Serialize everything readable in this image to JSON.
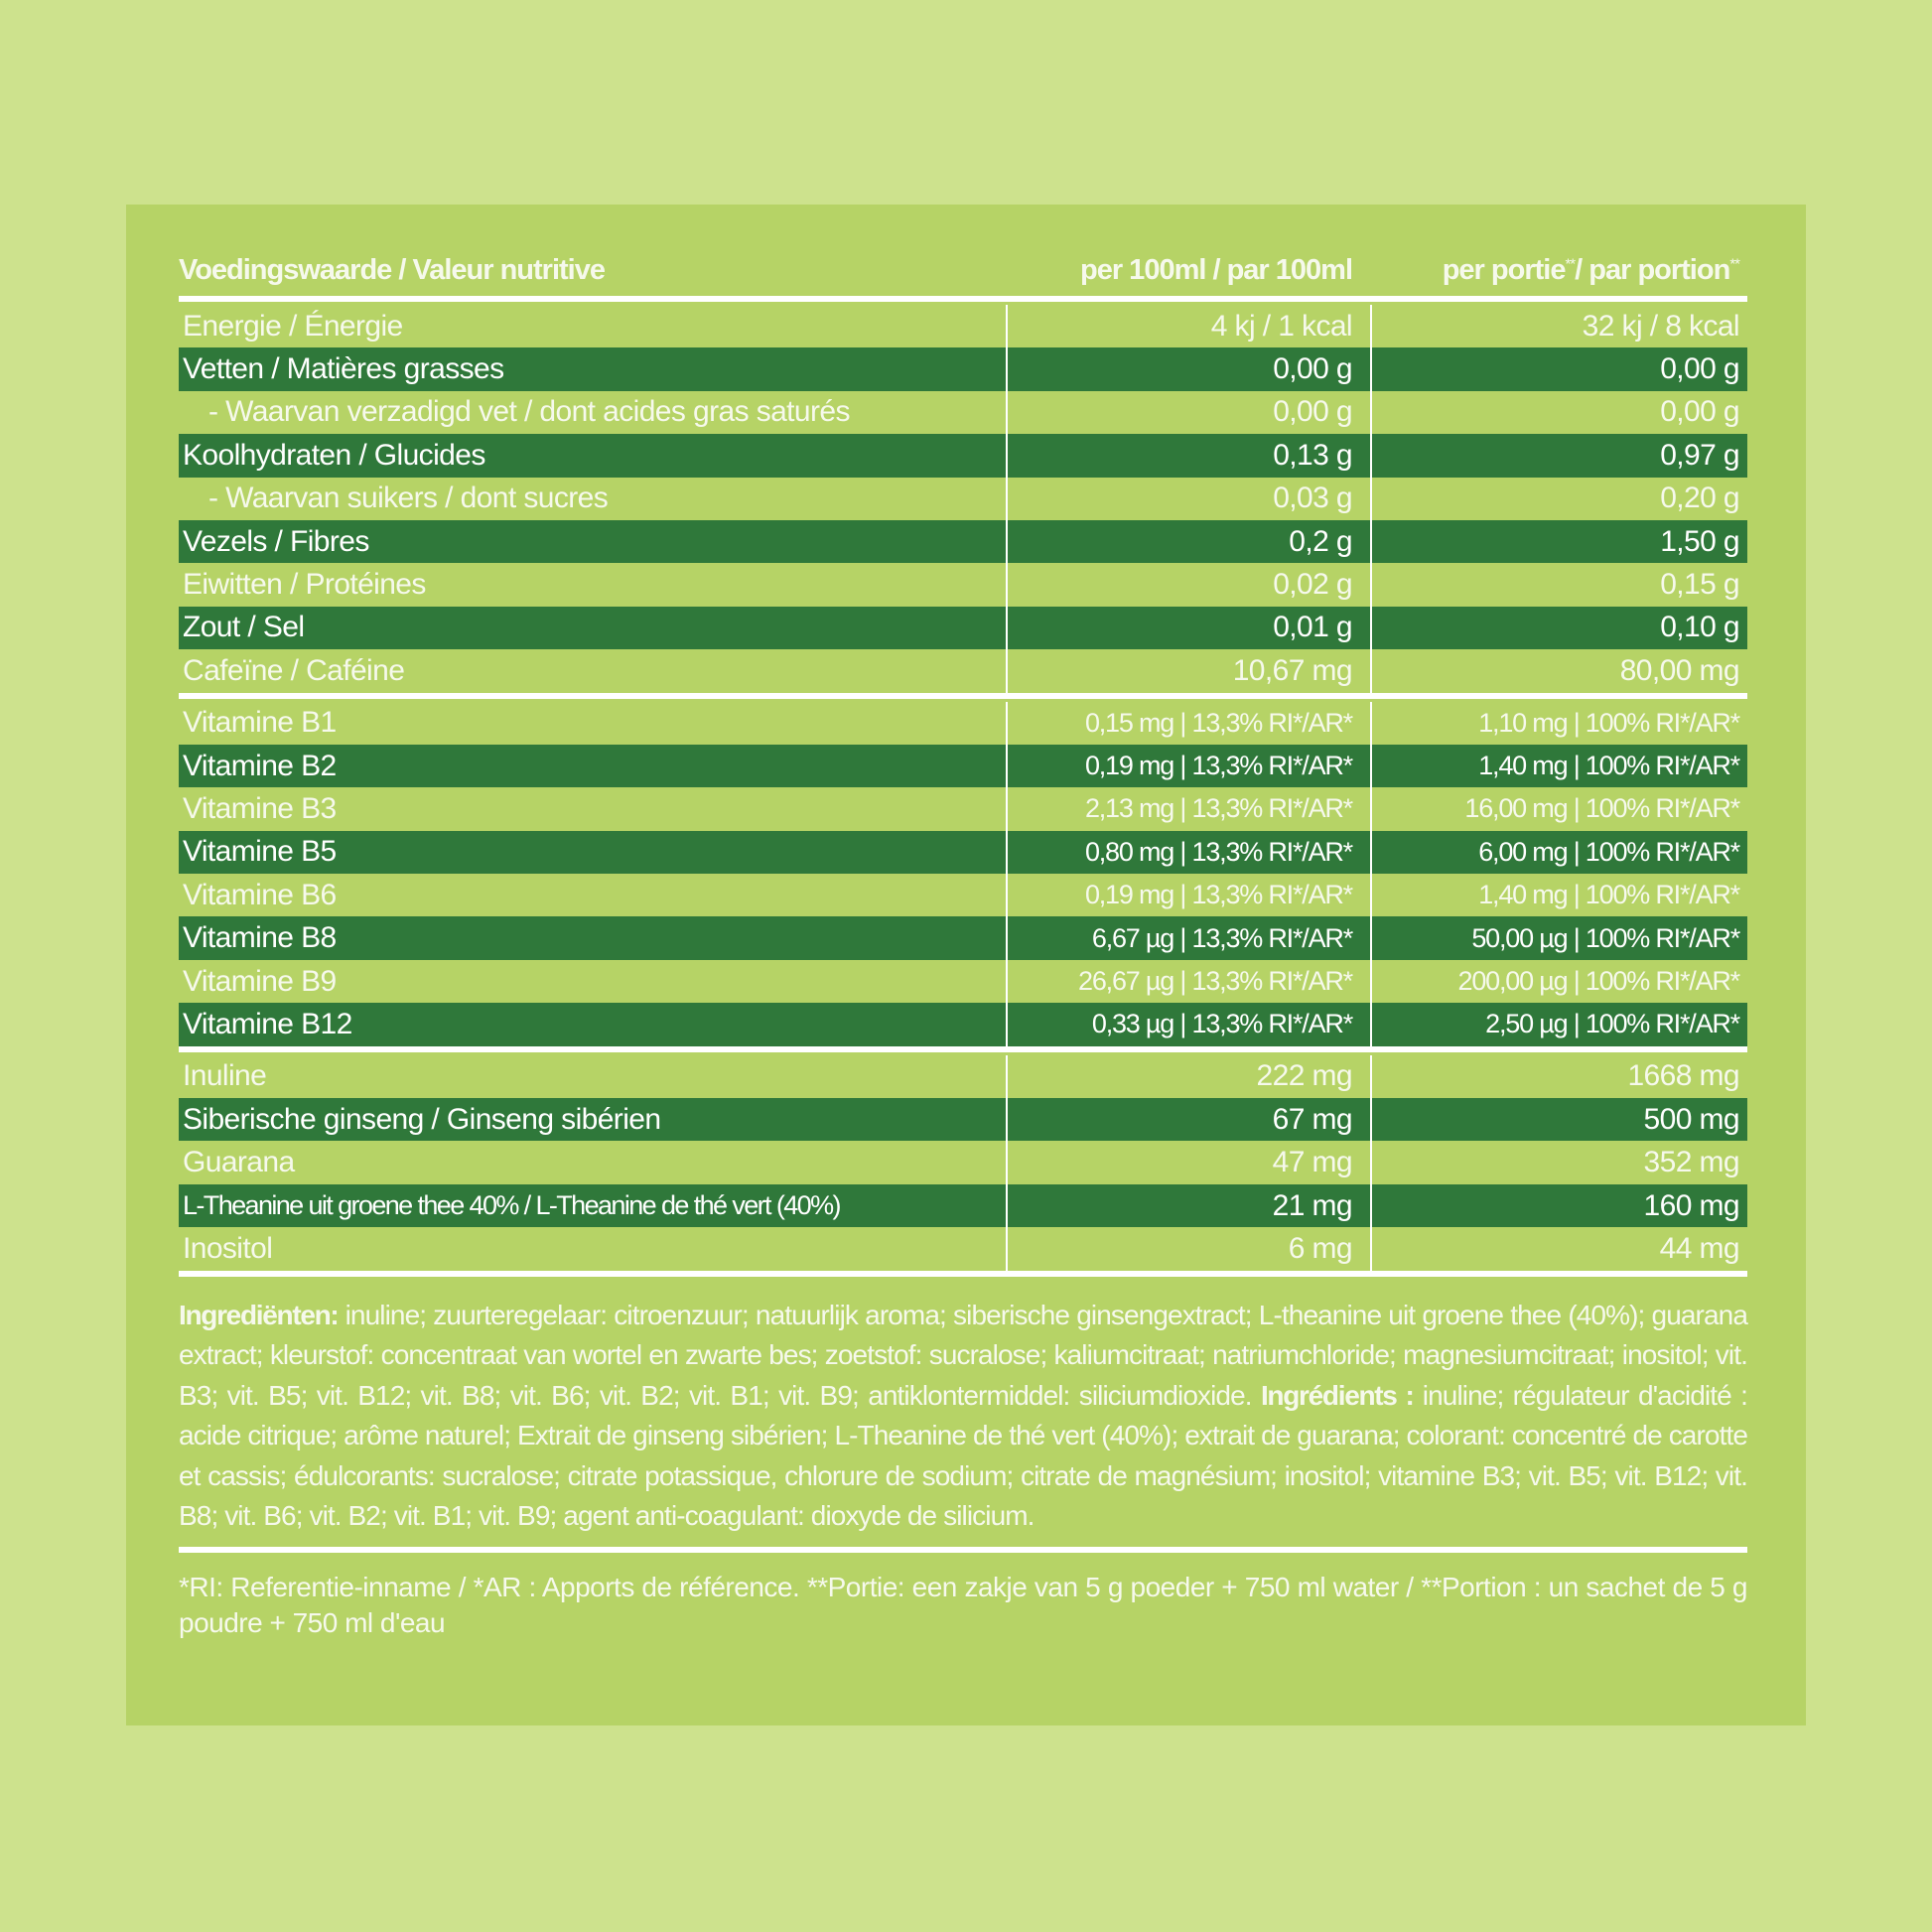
{
  "header": {
    "title": "Voedingswaarde / Valeur nutritive",
    "col1": "per 100ml / par 100ml",
    "col2_a": "per portie",
    "col2_a_sup": "**",
    "col2_b": "/ par portion",
    "col2_b_sup": "**"
  },
  "sections": [
    [
      [
        "Energie / Énergie",
        "4 kj / 1 kcal",
        "32 kj / 8 kcal"
      ],
      [
        "Vetten / Matières grasses",
        "0,00 g",
        "0,00 g"
      ],
      [
        "- Waarvan verzadigd vet / dont acides gras saturés",
        "0,00 g",
        "0,00 g"
      ],
      [
        "Koolhydraten / Glucides",
        "0,13 g",
        "0,97 g"
      ],
      [
        "- Waarvan suikers / dont sucres",
        "0,03 g",
        "0,20 g"
      ],
      [
        "Vezels / Fibres",
        "0,2 g",
        "1,50 g"
      ],
      [
        "Eiwitten / Protéines",
        "0,02 g",
        "0,15 g"
      ],
      [
        "Zout / Sel",
        "0,01 g",
        "0,10 g"
      ],
      [
        "Cafeïne / Caféine",
        "10,67 mg",
        "80,00 mg"
      ]
    ],
    [
      [
        "Vitamine B1",
        "0,15 mg | 13,3% RI*/AR*",
        "1,10 mg | 100% RI*/AR*"
      ],
      [
        "Vitamine B2",
        "0,19 mg | 13,3% RI*/AR*",
        "1,40 mg | 100% RI*/AR*"
      ],
      [
        "Vitamine B3",
        "2,13 mg | 13,3% RI*/AR*",
        "16,00 mg | 100% RI*/AR*"
      ],
      [
        "Vitamine B5",
        "0,80 mg | 13,3% RI*/AR*",
        "6,00 mg | 100% RI*/AR*"
      ],
      [
        "Vitamine B6",
        "0,19 mg | 13,3% RI*/AR*",
        "1,40 mg | 100% RI*/AR*"
      ],
      [
        "Vitamine B8",
        "6,67 µg | 13,3% RI*/AR*",
        "50,00 µg | 100% RI*/AR*"
      ],
      [
        "Vitamine B9",
        "26,67 µg | 13,3% RI*/AR*",
        "200,00 µg | 100% RI*/AR*"
      ],
      [
        "Vitamine B12",
        "0,33 µg | 13,3% RI*/AR*",
        "2,50 µg | 100% RI*/AR*"
      ]
    ],
    [
      [
        "Inuline",
        "222 mg",
        "1668 mg"
      ],
      [
        "Siberische ginseng / Ginseng sibérien",
        "67 mg",
        "500 mg"
      ],
      [
        "Guarana",
        "47 mg",
        "352 mg"
      ],
      [
        "L-Theanine uit groene thee 40% / L-Theanine de thé vert (40%)",
        "21 mg",
        "160 mg"
      ],
      [
        "Inositol",
        "6 mg",
        "44 mg"
      ]
    ]
  ],
  "ingredients": {
    "nl_label": "Ingrediënten:",
    "nl_text": " inuline; zuurteregelaar: citroenzuur; natuurlijk aroma; siberische ginsengextract; L-theanine uit groene thee (40%); guarana extract; kleurstof: concentraat van wortel en zwarte bes; zoetstof: sucralose; kaliumcitraat; natriumchloride; magnesiumcitraat; inositol; vit. B3; vit. B5; vit. B12; vit. B8; vit. B6; vit. B2; vit. B1; vit. B9; antiklontermiddel: siliciumdioxide. ",
    "fr_label": "Ingrédients :",
    "fr_text": " inuline; régulateur d'acidité : acide citrique; arôme naturel; Extrait de ginseng sibérien; L-Theanine de thé vert (40%); extrait de guarana; colorant: concentré de carotte et cassis; édulcorants: sucralose; citrate potassique, chlorure de sodium; citrate de magnésium; inositol; vitamine B3; vit. B5; vit. B12; vit. B8; vit. B6; vit. B2; vit. B1; vit. B9; agent anti-coagulant: dioxyde de silicium."
  },
  "footnote": "*RI: Referentie-inname / *AR : Apports de référence. **Portie: een zakje van 5 g poeder + 750 ml water / **Portion : un sachet de 5 g poudre + 750 ml d'eau"
}
